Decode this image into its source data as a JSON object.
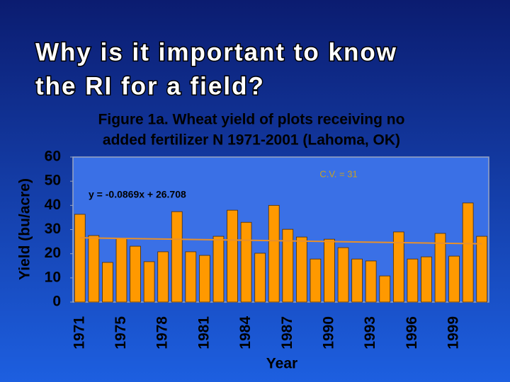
{
  "slide_title": [
    "Why is it important to know",
    "the RI for a field?"
  ],
  "chart_data": {
    "type": "bar",
    "title": [
      "Figure 1a.  Wheat yield of plots receiving no",
      "added fertilizer N 1971-2001 (Lahoma, OK)"
    ],
    "y_label": "Yield (bu/acre)",
    "x_label": "Year",
    "annotations": [
      "C.V. = 31",
      "y = -0.0869x + 26.708"
    ],
    "categories": [
      "1971",
      null,
      null,
      "1975",
      null,
      null,
      "1978",
      null,
      null,
      "1981",
      null,
      null,
      "1984",
      null,
      null,
      "1987",
      null,
      null,
      "1990",
      null,
      null,
      "1993",
      null,
      null,
      "1996",
      null,
      null,
      "1999",
      null,
      null
    ],
    "values": [
      36.3,
      27.5,
      16.4,
      26.3,
      23.1,
      16.7,
      20.8,
      37.4,
      20.8,
      19.3,
      27.2,
      38,
      33,
      20.2,
      40,
      30.1,
      26.9,
      17.8,
      26,
      22.5,
      17.8,
      17,
      10.8,
      29,
      17.8,
      18.7,
      28.4,
      19,
      41,
      27.2
    ],
    "color": "#ff9900",
    "trendline": {
      "color": "#e8902a",
      "values": [
        26.6,
        24.1
      ]
    },
    "ylim": [
      0,
      60
    ],
    "yticks": [
      0,
      10,
      20,
      30,
      40,
      50,
      60
    ],
    "grid": false
  }
}
